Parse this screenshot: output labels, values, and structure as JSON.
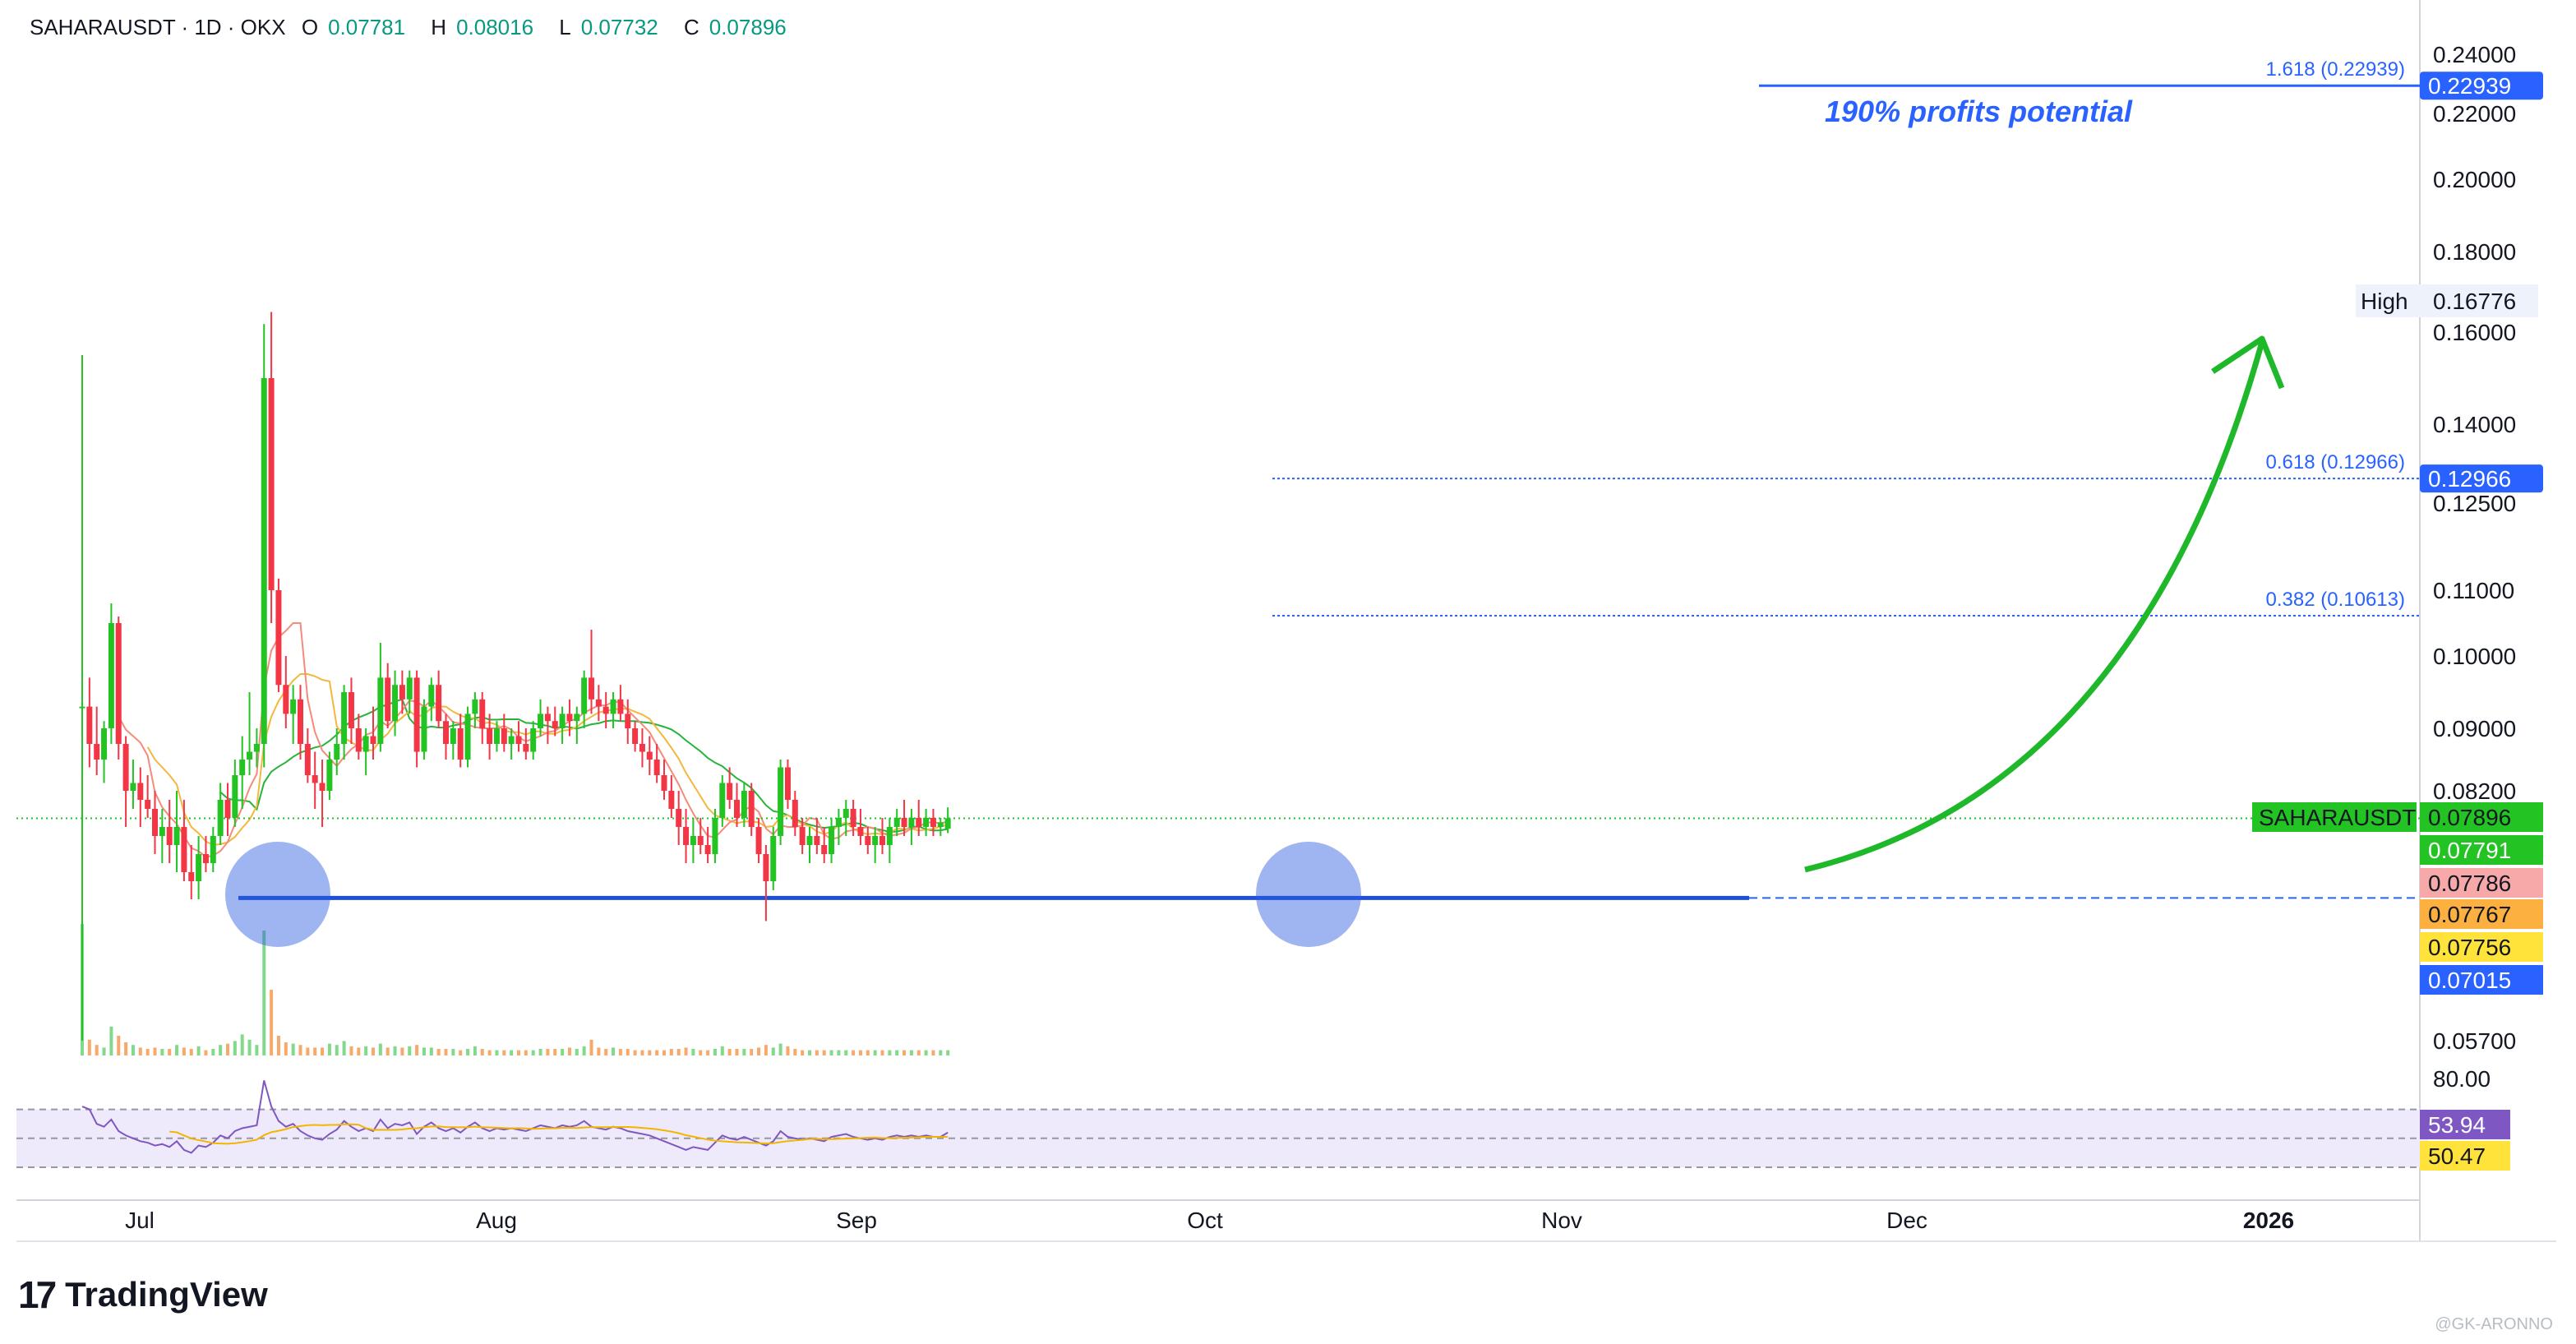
{
  "header": {
    "symbol": "SAHARAUSDT · 1D · OKX",
    "open_label": "O",
    "open": "0.07781",
    "high_label": "H",
    "high": "0.08016",
    "low_label": "L",
    "low": "0.07732",
    "close_label": "C",
    "close": "0.07896"
  },
  "brand": {
    "mark": "17",
    "name": "TradingView"
  },
  "watermark": "@GK-ARONNO",
  "colors": {
    "up": "#22c322",
    "down": "#f23645",
    "fib": "#2962ff",
    "arrow": "#1fb82a",
    "support": "#1e4fd8",
    "rsi": "#7e57c2",
    "rsi_ma": "#f2b500"
  },
  "chart_data": {
    "type": "candlestick",
    "price_axis_labels": [
      "0.24000",
      "0.22000",
      "0.20000",
      "0.18000",
      "0.16000",
      "0.14000",
      "0.12500",
      "0.11000",
      "0.10000",
      "0.09000",
      "0.08200",
      "0.05700"
    ],
    "time_axis_labels": [
      "Jul",
      "Aug",
      "Sep",
      "Oct",
      "Nov",
      "Dec",
      "2026"
    ],
    "rsi_level_label": "80.00",
    "fib_levels": [
      {
        "label": "1.618 (0.22939)",
        "value": 0.22939,
        "tag": "0.22939"
      },
      {
        "label": "0.618 (0.12966)",
        "value": 0.12966,
        "tag": "0.12966"
      },
      {
        "label": "0.382 (0.10613)",
        "value": 0.10613
      }
    ],
    "annotation": "190% profits potential",
    "high_marker": {
      "label": "High",
      "value": "0.16776"
    },
    "price_tags": [
      {
        "text": "SAHARAUSDT",
        "value": "0.07896",
        "color": "#22c322",
        "tcolor": "#131722"
      },
      {
        "text": "",
        "value": "0.07791",
        "color": "#22c322",
        "tcolor": "#ffffff"
      },
      {
        "text": "",
        "value": "0.07786",
        "color": "#f7a8a8",
        "tcolor": "#131722"
      },
      {
        "text": "",
        "value": "0.07767",
        "color": "#fbb040",
        "tcolor": "#131722"
      },
      {
        "text": "",
        "value": "0.07756",
        "color": "#ffe33b",
        "tcolor": "#131722"
      },
      {
        "text": "",
        "value": "0.07015",
        "color": "#2962ff",
        "tcolor": "#ffffff"
      }
    ],
    "rsi_tags": [
      {
        "value": "53.94",
        "color": "#7e57c2",
        "tcolor": "#ffffff"
      },
      {
        "value": "50.47",
        "color": "#ffe33b",
        "tcolor": "#131722"
      }
    ],
    "support_level": 0.07015,
    "candles": [
      [
        0.093,
        0.155,
        0.057,
        0.093
      ],
      [
        0.093,
        0.097,
        0.085,
        0.088
      ],
      [
        0.088,
        0.093,
        0.084,
        0.086
      ],
      [
        0.086,
        0.091,
        0.083,
        0.09
      ],
      [
        0.09,
        0.108,
        0.088,
        0.105
      ],
      [
        0.105,
        0.106,
        0.086,
        0.088
      ],
      [
        0.088,
        0.089,
        0.078,
        0.082
      ],
      [
        0.082,
        0.086,
        0.08,
        0.083
      ],
      [
        0.083,
        0.085,
        0.078,
        0.081
      ],
      [
        0.081,
        0.084,
        0.079,
        0.08
      ],
      [
        0.08,
        0.082,
        0.075,
        0.077
      ],
      [
        0.077,
        0.08,
        0.074,
        0.078
      ],
      [
        0.078,
        0.081,
        0.074,
        0.076
      ],
      [
        0.076,
        0.082,
        0.073,
        0.078
      ],
      [
        0.078,
        0.081,
        0.072,
        0.073
      ],
      [
        0.073,
        0.076,
        0.07,
        0.072
      ],
      [
        0.072,
        0.077,
        0.07,
        0.075
      ],
      [
        0.075,
        0.077,
        0.073,
        0.074
      ],
      [
        0.074,
        0.078,
        0.073,
        0.077
      ],
      [
        0.077,
        0.083,
        0.076,
        0.081
      ],
      [
        0.081,
        0.083,
        0.077,
        0.079
      ],
      [
        0.079,
        0.086,
        0.078,
        0.084
      ],
      [
        0.084,
        0.089,
        0.08,
        0.086
      ],
      [
        0.086,
        0.095,
        0.084,
        0.087
      ],
      [
        0.087,
        0.09,
        0.085,
        0.088
      ],
      [
        0.088,
        0.162,
        0.085,
        0.15
      ],
      [
        0.15,
        0.165,
        0.105,
        0.11
      ],
      [
        0.11,
        0.112,
        0.095,
        0.096
      ],
      [
        0.096,
        0.1,
        0.09,
        0.092
      ],
      [
        0.092,
        0.096,
        0.088,
        0.094
      ],
      [
        0.094,
        0.096,
        0.086,
        0.088
      ],
      [
        0.088,
        0.09,
        0.083,
        0.084
      ],
      [
        0.084,
        0.087,
        0.08,
        0.083
      ],
      [
        0.083,
        0.086,
        0.078,
        0.082
      ],
      [
        0.082,
        0.087,
        0.081,
        0.086
      ],
      [
        0.086,
        0.09,
        0.084,
        0.088
      ],
      [
        0.088,
        0.096,
        0.086,
        0.095
      ],
      [
        0.095,
        0.097,
        0.088,
        0.09
      ],
      [
        0.09,
        0.092,
        0.086,
        0.087
      ],
      [
        0.087,
        0.09,
        0.084,
        0.089
      ],
      [
        0.089,
        0.093,
        0.086,
        0.088
      ],
      [
        0.088,
        0.102,
        0.087,
        0.097
      ],
      [
        0.097,
        0.099,
        0.09,
        0.091
      ],
      [
        0.091,
        0.098,
        0.089,
        0.096
      ],
      [
        0.096,
        0.098,
        0.092,
        0.094
      ],
      [
        0.094,
        0.098,
        0.092,
        0.097
      ],
      [
        0.097,
        0.098,
        0.085,
        0.087
      ],
      [
        0.087,
        0.094,
        0.086,
        0.093
      ],
      [
        0.093,
        0.097,
        0.091,
        0.096
      ],
      [
        0.096,
        0.098,
        0.09,
        0.091
      ],
      [
        0.091,
        0.092,
        0.086,
        0.088
      ],
      [
        0.088,
        0.091,
        0.086,
        0.09
      ],
      [
        0.09,
        0.092,
        0.085,
        0.086
      ],
      [
        0.086,
        0.093,
        0.085,
        0.092
      ],
      [
        0.092,
        0.095,
        0.09,
        0.094
      ],
      [
        0.094,
        0.095,
        0.088,
        0.09
      ],
      [
        0.09,
        0.092,
        0.086,
        0.088
      ],
      [
        0.088,
        0.091,
        0.087,
        0.09
      ],
      [
        0.09,
        0.092,
        0.087,
        0.088
      ],
      [
        0.088,
        0.09,
        0.086,
        0.089
      ],
      [
        0.089,
        0.091,
        0.087,
        0.088
      ],
      [
        0.088,
        0.09,
        0.086,
        0.087
      ],
      [
        0.087,
        0.091,
        0.086,
        0.09
      ],
      [
        0.09,
        0.094,
        0.089,
        0.092
      ],
      [
        0.092,
        0.093,
        0.088,
        0.091
      ],
      [
        0.091,
        0.093,
        0.089,
        0.09
      ],
      [
        0.09,
        0.093,
        0.088,
        0.092
      ],
      [
        0.092,
        0.094,
        0.089,
        0.091
      ],
      [
        0.091,
        0.093,
        0.088,
        0.092
      ],
      [
        0.092,
        0.098,
        0.09,
        0.097
      ],
      [
        0.097,
        0.104,
        0.092,
        0.094
      ],
      [
        0.094,
        0.096,
        0.091,
        0.093
      ],
      [
        0.093,
        0.095,
        0.09,
        0.092
      ],
      [
        0.092,
        0.095,
        0.09,
        0.094
      ],
      [
        0.094,
        0.096,
        0.091,
        0.092
      ],
      [
        0.092,
        0.094,
        0.088,
        0.09
      ],
      [
        0.09,
        0.091,
        0.087,
        0.088
      ],
      [
        0.088,
        0.09,
        0.085,
        0.087
      ],
      [
        0.087,
        0.089,
        0.084,
        0.086
      ],
      [
        0.086,
        0.088,
        0.083,
        0.084
      ],
      [
        0.084,
        0.086,
        0.081,
        0.082
      ],
      [
        0.082,
        0.084,
        0.079,
        0.08
      ],
      [
        0.08,
        0.082,
        0.076,
        0.078
      ],
      [
        0.078,
        0.08,
        0.074,
        0.076
      ],
      [
        0.076,
        0.079,
        0.074,
        0.077
      ],
      [
        0.077,
        0.079,
        0.075,
        0.076
      ],
      [
        0.076,
        0.078,
        0.074,
        0.075
      ],
      [
        0.075,
        0.08,
        0.074,
        0.079
      ],
      [
        0.079,
        0.084,
        0.078,
        0.083
      ],
      [
        0.083,
        0.085,
        0.08,
        0.081
      ],
      [
        0.081,
        0.083,
        0.078,
        0.079
      ],
      [
        0.079,
        0.083,
        0.078,
        0.082
      ],
      [
        0.082,
        0.083,
        0.077,
        0.078
      ],
      [
        0.078,
        0.079,
        0.074,
        0.075
      ],
      [
        0.075,
        0.076,
        0.068,
        0.072
      ],
      [
        0.072,
        0.078,
        0.071,
        0.077
      ],
      [
        0.077,
        0.086,
        0.076,
        0.085
      ],
      [
        0.085,
        0.086,
        0.08,
        0.081
      ],
      [
        0.081,
        0.082,
        0.077,
        0.078
      ],
      [
        0.078,
        0.079,
        0.075,
        0.076
      ],
      [
        0.076,
        0.078,
        0.074,
        0.077
      ],
      [
        0.077,
        0.079,
        0.075,
        0.076
      ],
      [
        0.076,
        0.078,
        0.074,
        0.075
      ],
      [
        0.075,
        0.079,
        0.074,
        0.078
      ],
      [
        0.078,
        0.08,
        0.076,
        0.079
      ],
      [
        0.079,
        0.081,
        0.077,
        0.08
      ],
      [
        0.08,
        0.081,
        0.077,
        0.078
      ],
      [
        0.078,
        0.08,
        0.076,
        0.077
      ],
      [
        0.077,
        0.078,
        0.075,
        0.076
      ],
      [
        0.076,
        0.078,
        0.074,
        0.077
      ],
      [
        0.077,
        0.079,
        0.075,
        0.076
      ],
      [
        0.076,
        0.079,
        0.074,
        0.078
      ],
      [
        0.078,
        0.08,
        0.077,
        0.079
      ],
      [
        0.079,
        0.081,
        0.077,
        0.078
      ],
      [
        0.078,
        0.08,
        0.076,
        0.079
      ],
      [
        0.079,
        0.081,
        0.077,
        0.078
      ],
      [
        0.078,
        0.08,
        0.077,
        0.079
      ],
      [
        0.079,
        0.08,
        0.077,
        0.078
      ],
      [
        0.078,
        0.079,
        0.077,
        0.0785
      ],
      [
        0.07781,
        0.08016,
        0.07732,
        0.07896
      ]
    ],
    "rsi": [
      72,
      70,
      60,
      58,
      63,
      55,
      52,
      50,
      48,
      47,
      45,
      46,
      44,
      48,
      42,
      40,
      45,
      44,
      47,
      52,
      50,
      55,
      57,
      58,
      59,
      90,
      72,
      62,
      58,
      60,
      55,
      52,
      50,
      49,
      53,
      56,
      62,
      58,
      55,
      57,
      55,
      63,
      57,
      60,
      59,
      61,
      53,
      58,
      61,
      57,
      55,
      57,
      54,
      58,
      61,
      57,
      55,
      57,
      56,
      57,
      56,
      55,
      57,
      59,
      58,
      57,
      59,
      58,
      59,
      62,
      58,
      57,
      56,
      58,
      57,
      55,
      54,
      53,
      52,
      50,
      48,
      46,
      44,
      42,
      44,
      43,
      42,
      47,
      52,
      50,
      49,
      51,
      49,
      47,
      45,
      48,
      55,
      51,
      50,
      49,
      50,
      49,
      48,
      51,
      52,
      53,
      51,
      50,
      49,
      50,
      49,
      51,
      52,
      51,
      52,
      51,
      52,
      51,
      51,
      54
    ],
    "rsi_ma_start": 52,
    "volumes": [
      100,
      12,
      8,
      6,
      22,
      15,
      10,
      8,
      6,
      5,
      6,
      5,
      5,
      8,
      6,
      5,
      7,
      4,
      5,
      8,
      9,
      11,
      16,
      12,
      8,
      95,
      50,
      15,
      10,
      9,
      8,
      6,
      6,
      6,
      9,
      8,
      11,
      7,
      6,
      7,
      6,
      9,
      6,
      7,
      6,
      7,
      8,
      6,
      6,
      5,
      5,
      5,
      4,
      5,
      7,
      5,
      4,
      4,
      4,
      4,
      4,
      4,
      4,
      5,
      5,
      5,
      5,
      6,
      5,
      7,
      12,
      6,
      5,
      6,
      5,
      5,
      4,
      4,
      4,
      4,
      4,
      5,
      5,
      6,
      5,
      4,
      4,
      5,
      7,
      5,
      5,
      5,
      5,
      6,
      8,
      6,
      9,
      7,
      5,
      4,
      4,
      4,
      4,
      4,
      4,
      4,
      4,
      4,
      4,
      4,
      4,
      4,
      4,
      4,
      4,
      4,
      4,
      4,
      4,
      4
    ]
  }
}
